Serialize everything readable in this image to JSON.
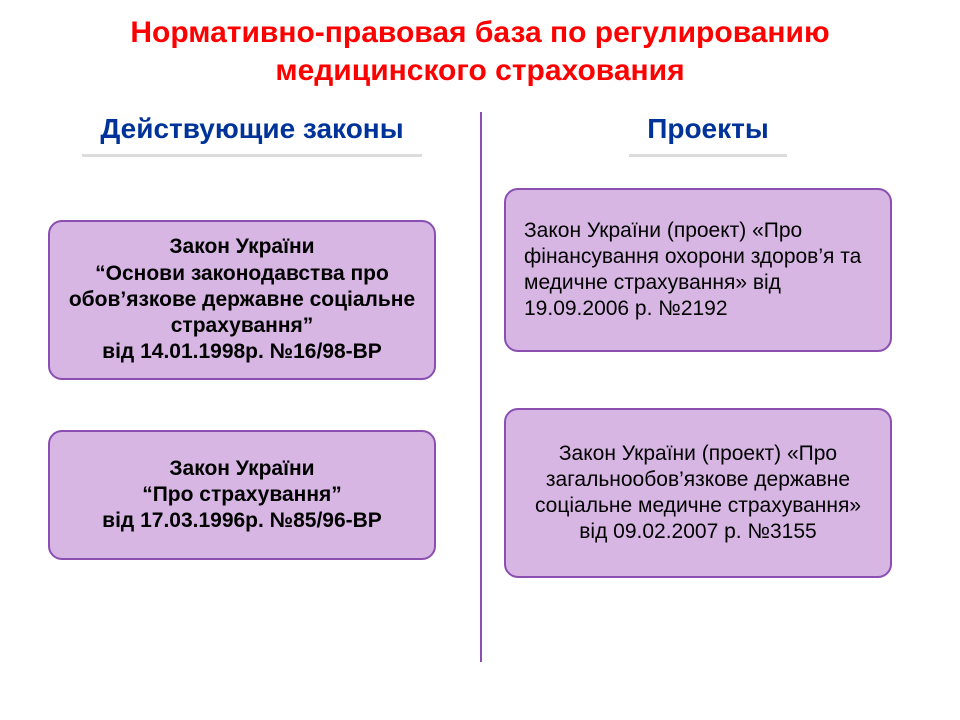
{
  "colors": {
    "title": "#ff0000",
    "header": "#003399",
    "header_underline": "#dcdcdc",
    "card_bg": "#d7b6e4",
    "card_border": "#8a4fb1",
    "card_text": "#000000",
    "divider": "#8a4fb1",
    "background": "#ffffff"
  },
  "typography": {
    "title_fontsize": 30,
    "header_fontsize": 28,
    "card_fontsize": 21,
    "card_fontsize_right": 21
  },
  "layout": {
    "card_border_width": 2,
    "card_border_radius": 14,
    "header_underline_width": 3,
    "divider_width": 2
  },
  "title": "Нормативно-правовая база по регулированию медицинского страхования",
  "left": {
    "header": "Действующие законы",
    "card1": "Закон України\n“Основи законодавства про обов’язкове державне соціальне страхування”\nвід 14.01.1998р. №16/98-ВР",
    "card2": "Закон України\n“Про страхування”\nвід 17.03.1996р. №85/96-ВР"
  },
  "right": {
    "header": "Проекты",
    "card1": "Закон України (проект) «Про фінансування охорони здоров’я та медичне страхування» від 19.09.2006 р. №2192",
    "card2": "Закон України (проект) «Про загальнообов’язкове державне соціальне медичне страхування» від 09.02.2007 р. №3155"
  }
}
